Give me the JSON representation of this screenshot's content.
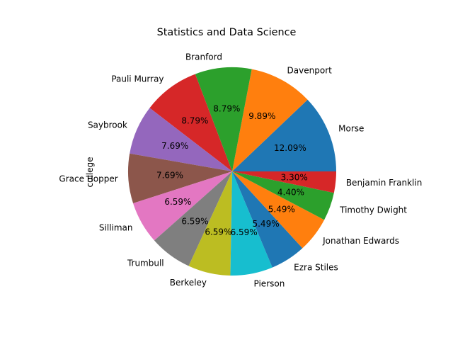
{
  "chart_data": {
    "type": "pie",
    "title": "Statistics and Data Science",
    "ylabel": "college",
    "start_angle_deg": 0,
    "direction": "counterclockwise",
    "slices": [
      {
        "label": "Morse",
        "value": 12.09,
        "pct_label": "12.09%",
        "color": "#1f77b4"
      },
      {
        "label": "Davenport",
        "value": 9.89,
        "pct_label": "9.89%",
        "color": "#ff7f0e"
      },
      {
        "label": "Branford",
        "value": 8.79,
        "pct_label": "8.79%",
        "color": "#2ca02c"
      },
      {
        "label": "Pauli Murray",
        "value": 8.79,
        "pct_label": "8.79%",
        "color": "#d62728"
      },
      {
        "label": "Saybrook",
        "value": 7.69,
        "pct_label": "7.69%",
        "color": "#9467bd"
      },
      {
        "label": "Grace Hopper",
        "value": 7.69,
        "pct_label": "7.69%",
        "color": "#8c564b"
      },
      {
        "label": "Silliman",
        "value": 6.59,
        "pct_label": "6.59%",
        "color": "#e377c2"
      },
      {
        "label": "Trumbull",
        "value": 6.59,
        "pct_label": "6.59%",
        "color": "#7f7f7f"
      },
      {
        "label": "Berkeley",
        "value": 6.59,
        "pct_label": "6.59%",
        "color": "#bcbd22"
      },
      {
        "label": "Pierson",
        "value": 6.59,
        "pct_label": "6.59%",
        "color": "#17becf"
      },
      {
        "label": "Ezra Stiles",
        "value": 5.49,
        "pct_label": "5.49%",
        "color": "#1f77b4"
      },
      {
        "label": "Jonathan Edwards",
        "value": 5.49,
        "pct_label": "5.49%",
        "color": "#ff7f0e"
      },
      {
        "label": "Timothy Dwight",
        "value": 4.4,
        "pct_label": "4.40%",
        "color": "#2ca02c"
      },
      {
        "label": "Benjamin Franklin",
        "value": 3.3,
        "pct_label": "3.30%",
        "color": "#d62728"
      }
    ]
  }
}
